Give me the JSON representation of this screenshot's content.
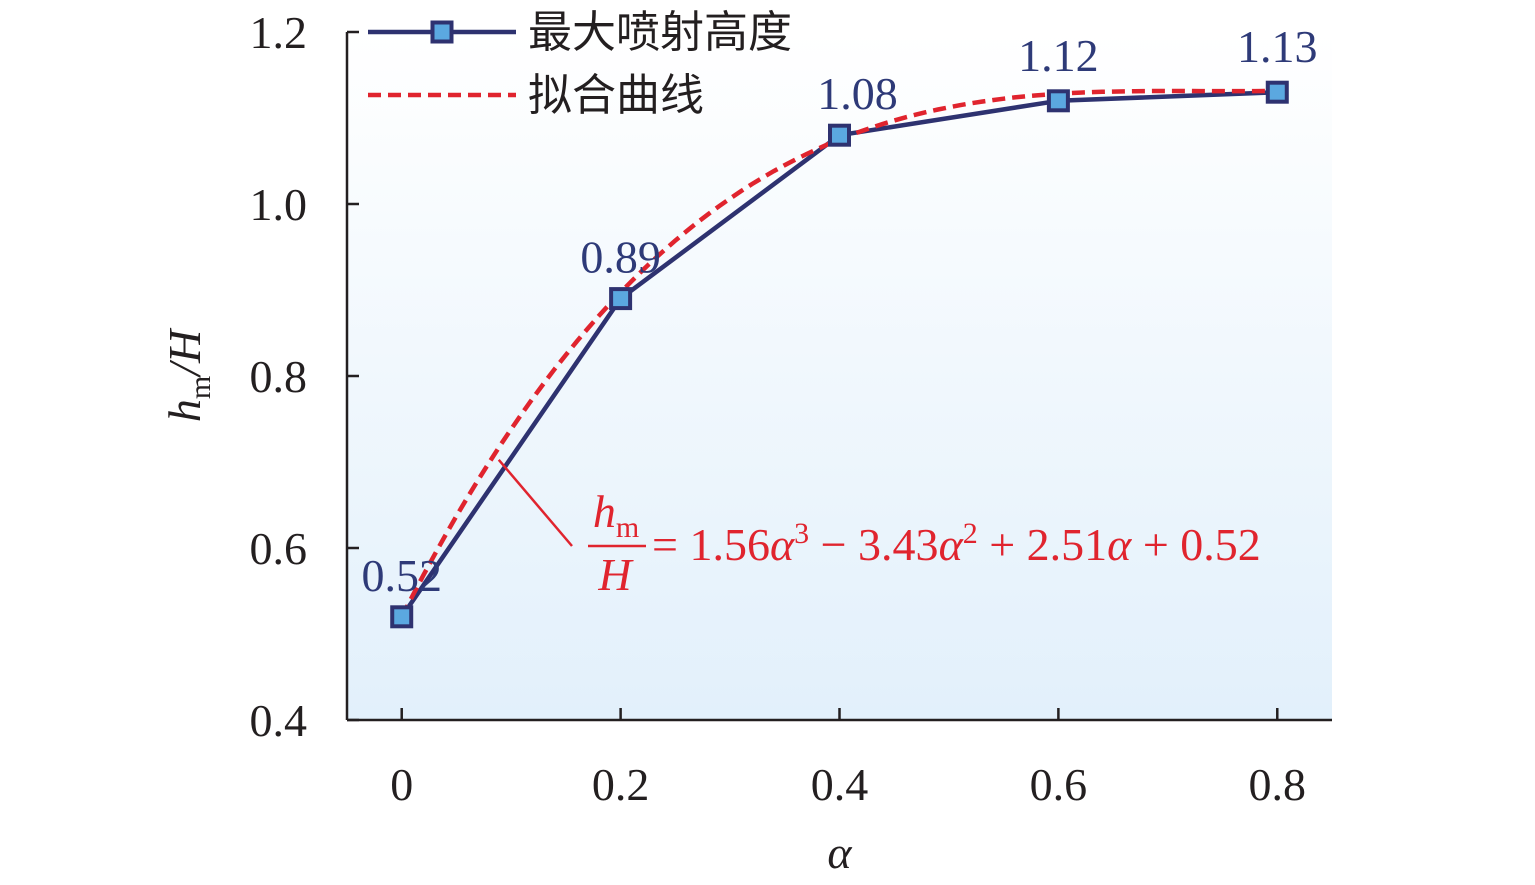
{
  "chart_data": {
    "type": "line",
    "x": [
      0,
      0.2,
      0.4,
      0.6,
      0.8
    ],
    "series": [
      {
        "name": "最大喷射高度",
        "values": [
          0.52,
          0.89,
          1.08,
          1.12,
          1.13
        ],
        "data_labels": [
          "0.52",
          "0.89",
          "1.08",
          "1.12",
          "1.13"
        ],
        "color": "#2e3270",
        "marker_color": "#5ba8e0",
        "style": "solid"
      },
      {
        "name": "拟合曲线",
        "coefficients": [
          1.56,
          -3.43,
          2.51,
          0.52
        ],
        "color": "#e0242e",
        "style": "dashed"
      }
    ],
    "xlabel": "α",
    "ylabel_main": "h",
    "ylabel_sub": "m",
    "ylabel_tail": "/H",
    "xlim": [
      -0.05,
      0.85
    ],
    "ylim": [
      0.4,
      1.2
    ],
    "x_ticks": [
      0,
      0.2,
      0.4,
      0.6,
      0.8
    ],
    "x_tick_labels": [
      "0",
      "0.2",
      "0.4",
      "0.6",
      "0.8"
    ],
    "y_ticks": [
      0.4,
      0.6,
      0.8,
      1.0,
      1.2
    ],
    "y_tick_labels": [
      "0.4",
      "0.6",
      "0.8",
      "1.0",
      "1.2"
    ],
    "legend_position": "top-left",
    "annotation": {
      "num_main": "h",
      "num_sub": "m",
      "den": "H",
      "rhs_1": " = 1.56",
      "alpha_1": "α",
      "exp_1": "3",
      "rhs_2": " − 3.43",
      "alpha_2": "α",
      "exp_2": "2",
      "rhs_3": " + 2.51",
      "alpha_3": "α",
      "rhs_4": " + 0.52",
      "pointer_x": 0.085
    },
    "background_gradient": [
      "#ffffff",
      "#e2f0fb"
    ]
  }
}
